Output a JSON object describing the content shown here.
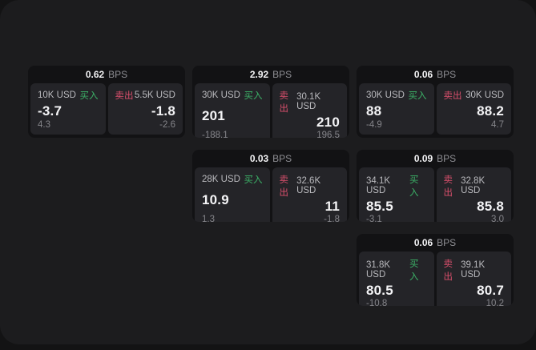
{
  "colors": {
    "backdrop": "#131314",
    "panel": "#1c1c1e",
    "card_bg": "#121214",
    "cell_bg": "#242428",
    "buy_green": "#3cb368",
    "sell_red": "#d94f6c"
  },
  "cards": [
    {
      "row": 1,
      "col": 1,
      "bps_value": "0.62",
      "bps_unit": "BPS",
      "buy": {
        "amount": "10K USD",
        "label": "买入",
        "price": "-3.7",
        "delta": "4.3"
      },
      "sell": {
        "label": "卖出",
        "amount": "5.5K USD",
        "price": "-1.8",
        "delta": "-2.6"
      }
    },
    {
      "row": 1,
      "col": 2,
      "bps_value": "2.92",
      "bps_unit": "BPS",
      "buy": {
        "amount": "30K USD",
        "label": "买入",
        "price": "201",
        "delta": "-188.1"
      },
      "sell": {
        "label": "卖出",
        "amount": "30.1K USD",
        "price": "210",
        "delta": "196.5"
      }
    },
    {
      "row": 1,
      "col": 3,
      "bps_value": "0.06",
      "bps_unit": "BPS",
      "buy": {
        "amount": "30K USD",
        "label": "买入",
        "price": "88",
        "delta": "-4.9"
      },
      "sell": {
        "label": "卖出",
        "amount": "30K USD",
        "price": "88.2",
        "delta": "4.7"
      }
    },
    {
      "row": 2,
      "col": 2,
      "bps_value": "0.03",
      "bps_unit": "BPS",
      "buy": {
        "amount": "28K USD",
        "label": "买入",
        "price": "10.9",
        "delta": "1.3"
      },
      "sell": {
        "label": "卖出",
        "amount": "32.6K USD",
        "price": "11",
        "delta": "-1.8"
      }
    },
    {
      "row": 2,
      "col": 3,
      "bps_value": "0.09",
      "bps_unit": "BPS",
      "buy": {
        "amount": "34.1K USD",
        "label": "买入",
        "price": "85.5",
        "delta": "-3.1"
      },
      "sell": {
        "label": "卖出",
        "amount": "32.8K USD",
        "price": "85.8",
        "delta": "3.0"
      }
    },
    {
      "row": 3,
      "col": 3,
      "bps_value": "0.06",
      "bps_unit": "BPS",
      "buy": {
        "amount": "31.8K USD",
        "label": "买入",
        "price": "80.5",
        "delta": "-10.8"
      },
      "sell": {
        "label": "卖出",
        "amount": "39.1K USD",
        "price": "80.7",
        "delta": "10.2"
      }
    }
  ]
}
